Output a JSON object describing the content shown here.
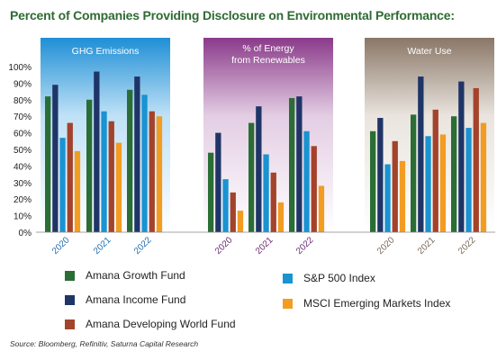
{
  "chart_data": {
    "type": "bar",
    "title": "Percent of Companies Providing Disclosure on Environmental Performance:",
    "ylim": [
      0,
      100
    ],
    "yticks": [
      "0%",
      "10%",
      "20%",
      "30%",
      "40%",
      "50%",
      "60%",
      "70%",
      "80%",
      "90%",
      "100%"
    ],
    "grid": false,
    "legend_position": "bottom",
    "groups": [
      {
        "name": "GHG Emissions",
        "panel_colors": [
          "#1f8fd6",
          "#bfe1f6"
        ],
        "categories": [
          "2020",
          "2021",
          "2022"
        ],
        "series": [
          {
            "name": "Amana Growth Fund",
            "values": [
              82,
              80,
              86
            ]
          },
          {
            "name": "Amana Income Fund",
            "values": [
              89,
              97,
              94
            ]
          },
          {
            "name": "S&P 500 Index",
            "values": [
              57,
              73,
              83
            ]
          },
          {
            "name": "Amana Developing World Fund",
            "values": [
              66,
              67,
              73
            ]
          },
          {
            "name": "MSCI Emerging Markets Index",
            "values": [
              49,
              54,
              70
            ]
          }
        ]
      },
      {
        "name": "% of Energy\nfrom Renewables",
        "panel_colors": [
          "#8a3a8a",
          "#e3cde3"
        ],
        "categories": [
          "2020",
          "2021",
          "2022"
        ],
        "series": [
          {
            "name": "Amana Growth Fund",
            "values": [
              48,
              66,
              81
            ]
          },
          {
            "name": "Amana Income Fund",
            "values": [
              60,
              76,
              82
            ]
          },
          {
            "name": "S&P 500 Index",
            "values": [
              32,
              47,
              61
            ]
          },
          {
            "name": "Amana Developing World Fund",
            "values": [
              24,
              36,
              52
            ]
          },
          {
            "name": "MSCI Emerging Markets Index",
            "values": [
              13,
              18,
              28
            ]
          }
        ]
      },
      {
        "name": "Water Use",
        "panel_colors": [
          "#8a7767",
          "#e9e4de"
        ],
        "categories": [
          "2020",
          "2021",
          "2022"
        ],
        "series": [
          {
            "name": "Amana Growth Fund",
            "values": [
              61,
              71,
              70
            ]
          },
          {
            "name": "Amana Income Fund",
            "values": [
              69,
              94,
              91
            ]
          },
          {
            "name": "S&P 500 Index",
            "values": [
              41,
              58,
              63
            ]
          },
          {
            "name": "Amana Developing World Fund",
            "values": [
              55,
              74,
              87
            ]
          },
          {
            "name": "MSCI Emerging Markets Index",
            "values": [
              43,
              59,
              66
            ]
          }
        ]
      }
    ],
    "series_colors": {
      "Amana Growth Fund": "#2a6e35",
      "Amana Income Fund": "#1f3567",
      "S&P 500 Index": "#1a93d1",
      "Amana Developing World Fund": "#a3432b",
      "MSCI Emerging Markets Index": "#f39c22"
    },
    "year_label_colors": [
      "#1f6fb0",
      "#6d2a73",
      "#7a6a5c"
    ]
  },
  "legend": [
    {
      "label": "Amana Growth Fund",
      "color": "#2a6e35"
    },
    {
      "label": "Amana Income Fund",
      "color": "#1f3567"
    },
    {
      "label": "Amana Developing World Fund",
      "color": "#a3432b"
    },
    {
      "label": "S&P 500 Index",
      "color": "#1a93d1"
    },
    {
      "label": "MSCI Emerging Markets Index",
      "color": "#f39c22"
    }
  ],
  "source": "Source: Bloomberg, Refinitiv, Saturna Capital Research"
}
